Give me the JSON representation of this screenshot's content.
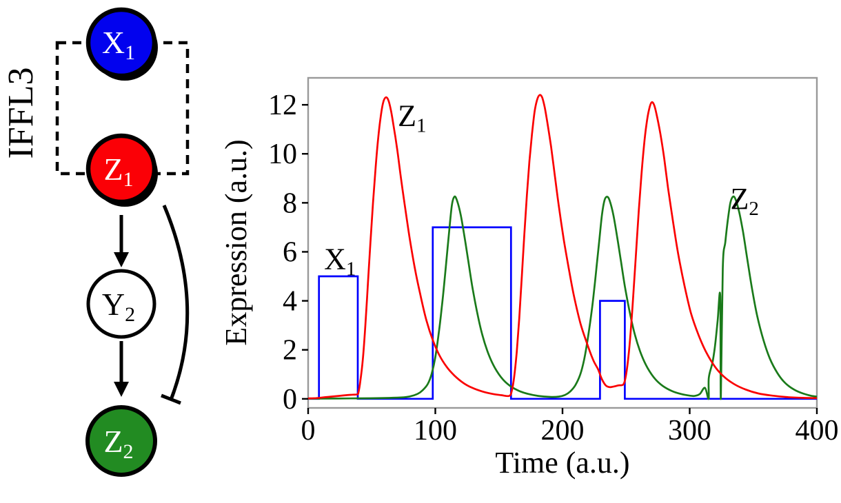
{
  "figure": {
    "background": "#ffffff"
  },
  "diagram": {
    "title": "IFFL3",
    "nodes": [
      {
        "id": "X1",
        "label_main": "X",
        "label_sub": "1",
        "fill": "#0202ee",
        "text_color": "#ffffff"
      },
      {
        "id": "Z1",
        "label_main": "Z",
        "label_sub": "1",
        "fill": "#fb0006",
        "text_color": "#ffffff"
      },
      {
        "id": "Y2",
        "label_main": "Y",
        "label_sub": "2",
        "fill": "#ffffff",
        "text_color": "#000000"
      },
      {
        "id": "Z2",
        "label_main": "Z",
        "label_sub": "2",
        "fill": "#228b22",
        "text_color": "#ffffff"
      }
    ],
    "edges": [
      {
        "from": "X1",
        "to": "Z1",
        "type": "dashed-association"
      },
      {
        "from": "Z1",
        "to": "Y2",
        "type": "activation-arrow"
      },
      {
        "from": "Y2",
        "to": "Z2",
        "type": "activation-arrow"
      },
      {
        "from": "Z1",
        "to": "Z2",
        "type": "inhibition-bar"
      }
    ]
  },
  "chart_data": {
    "type": "line",
    "title": "",
    "xlabel": "Time (a.u.)",
    "ylabel": "Expression  (a.u.)",
    "xlim": [
      0,
      400
    ],
    "ylim": [
      -0.37,
      13.1
    ],
    "x_ticks": [
      0,
      100,
      200,
      300,
      400
    ],
    "y_ticks": [
      0,
      2,
      4,
      6,
      8,
      10,
      12
    ],
    "grid": false,
    "legend_position": "none",
    "frame_color": "#999999",
    "series": [
      {
        "name": "X1",
        "color": "#0000ff",
        "style": "step",
        "points": [
          [
            0,
            0
          ],
          [
            8.5,
            0
          ],
          [
            8.5,
            5
          ],
          [
            39,
            5
          ],
          [
            39,
            0
          ],
          [
            98,
            0
          ],
          [
            98,
            7
          ],
          [
            159.5,
            7
          ],
          [
            159.5,
            0
          ],
          [
            229.5,
            0
          ],
          [
            229.5,
            4
          ],
          [
            249,
            4
          ],
          [
            249,
            0
          ],
          [
            400,
            0
          ]
        ]
      },
      {
        "name": "Z2",
        "color": "#1a7a1a",
        "style": "smooth",
        "points": [
          [
            0,
            0.01
          ],
          [
            40,
            0.02
          ],
          [
            70,
            0.05
          ],
          [
            80,
            0.1
          ],
          [
            86,
            0.2
          ],
          [
            90,
            0.35
          ],
          [
            94,
            0.6
          ],
          [
            97,
            1.0
          ],
          [
            100,
            1.7
          ],
          [
            103,
            2.8
          ],
          [
            105,
            3.7
          ],
          [
            107,
            4.7
          ],
          [
            109,
            5.8
          ],
          [
            111,
            6.9
          ],
          [
            113,
            7.9
          ],
          [
            115,
            8.25
          ],
          [
            117,
            8.1
          ],
          [
            120,
            7.5
          ],
          [
            123,
            6.6
          ],
          [
            126,
            5.6
          ],
          [
            129,
            4.6
          ],
          [
            133,
            3.5
          ],
          [
            137,
            2.6
          ],
          [
            142,
            1.8
          ],
          [
            147,
            1.25
          ],
          [
            153,
            0.8
          ],
          [
            159,
            0.52
          ],
          [
            166,
            0.32
          ],
          [
            173,
            0.2
          ],
          [
            181,
            0.12
          ],
          [
            190,
            0.08
          ],
          [
            197,
            0.09
          ],
          [
            202,
            0.16
          ],
          [
            206,
            0.3
          ],
          [
            210,
            0.55
          ],
          [
            214,
            1.0
          ],
          [
            217,
            1.6
          ],
          [
            220,
            2.5
          ],
          [
            223,
            3.6
          ],
          [
            225,
            4.5
          ],
          [
            227,
            5.5
          ],
          [
            229,
            6.5
          ],
          [
            231,
            7.5
          ],
          [
            233,
            8.1
          ],
          [
            235,
            8.25
          ],
          [
            237,
            8.1
          ],
          [
            240,
            7.5
          ],
          [
            243,
            6.6
          ],
          [
            246,
            5.6
          ],
          [
            249,
            4.6
          ],
          [
            253,
            3.5
          ],
          [
            257,
            2.6
          ],
          [
            262,
            1.8
          ],
          [
            267,
            1.25
          ],
          [
            273,
            0.8
          ],
          [
            279,
            0.52
          ],
          [
            286,
            0.32
          ],
          [
            293,
            0.2
          ],
          [
            300,
            0.13
          ],
          [
            304,
            0.12
          ],
          [
            308,
            0.2
          ],
          [
            312,
            0.45
          ],
          [
            315,
            0.85
          ],
          [
            318,
            1.5
          ],
          [
            320,
            2.2
          ],
          [
            322,
            3.2
          ],
          [
            314.9,
            0.0
          ],
          [
            324,
            4.2
          ],
          [
            326,
            5.3
          ],
          [
            328,
            6.4
          ],
          [
            330,
            7.3
          ],
          [
            332,
            8.0
          ],
          [
            324.5,
            0.0
          ],
          [
            334,
            8.25
          ],
          [
            336,
            8.15
          ],
          [
            339,
            7.6
          ],
          [
            342,
            6.8
          ],
          [
            345,
            5.8
          ],
          [
            349,
            4.5
          ],
          [
            353,
            3.4
          ],
          [
            358,
            2.4
          ],
          [
            363,
            1.65
          ],
          [
            369,
            1.05
          ],
          [
            375,
            0.65
          ],
          [
            382,
            0.38
          ],
          [
            389,
            0.22
          ],
          [
            396,
            0.12
          ],
          [
            400,
            0.09
          ]
        ]
      },
      {
        "name": "Z1",
        "color": "#fa0000",
        "style": "smooth",
        "points": [
          [
            0,
            0.02
          ],
          [
            6,
            0.03
          ],
          [
            12,
            0.06
          ],
          [
            18,
            0.09
          ],
          [
            24,
            0.12
          ],
          [
            30,
            0.15
          ],
          [
            35,
            0.17
          ],
          [
            38.5,
            0.18
          ],
          [
            39.5,
            0.25
          ],
          [
            41,
            0.7
          ],
          [
            43,
            1.6
          ],
          [
            45,
            3.0
          ],
          [
            47,
            4.7
          ],
          [
            49,
            6.4
          ],
          [
            51,
            8.0
          ],
          [
            53,
            9.4
          ],
          [
            55,
            10.6
          ],
          [
            57,
            11.5
          ],
          [
            59,
            12.1
          ],
          [
            61,
            12.3
          ],
          [
            63,
            12.2
          ],
          [
            65,
            11.8
          ],
          [
            67,
            11.2
          ],
          [
            70,
            10.2
          ],
          [
            73,
            9.0
          ],
          [
            76,
            7.9
          ],
          [
            80,
            6.5
          ],
          [
            84,
            5.3
          ],
          [
            88,
            4.3
          ],
          [
            93,
            3.2
          ],
          [
            98,
            2.4
          ],
          [
            103,
            1.8
          ],
          [
            109,
            1.3
          ],
          [
            115,
            0.95
          ],
          [
            122,
            0.65
          ],
          [
            129,
            0.45
          ],
          [
            137,
            0.3
          ],
          [
            145,
            0.2
          ],
          [
            152,
            0.15
          ],
          [
            158,
            0.12
          ],
          [
            160,
            0.3
          ],
          [
            162,
            0.9
          ],
          [
            164,
            1.9
          ],
          [
            166,
            3.3
          ],
          [
            168,
            5.0
          ],
          [
            170,
            6.7
          ],
          [
            172,
            8.3
          ],
          [
            174,
            9.7
          ],
          [
            176,
            10.8
          ],
          [
            178,
            11.7
          ],
          [
            180,
            12.2
          ],
          [
            182,
            12.4
          ],
          [
            184,
            12.3
          ],
          [
            186,
            11.9
          ],
          [
            188,
            11.3
          ],
          [
            191,
            10.3
          ],
          [
            194,
            9.1
          ],
          [
            197,
            7.9
          ],
          [
            201,
            6.5
          ],
          [
            205,
            5.3
          ],
          [
            209,
            4.2
          ],
          [
            214,
            3.1
          ],
          [
            219,
            2.3
          ],
          [
            224,
            1.6
          ],
          [
            228,
            1.2
          ],
          [
            231,
            0.8
          ],
          [
            234,
            0.55
          ],
          [
            237,
            0.48
          ],
          [
            240,
            0.5
          ],
          [
            244,
            0.55
          ],
          [
            248,
            0.6
          ],
          [
            250,
            1.0
          ],
          [
            252,
            1.8
          ],
          [
            254,
            3.0
          ],
          [
            256,
            4.5
          ],
          [
            258,
            6.1
          ],
          [
            260,
            7.7
          ],
          [
            262,
            9.1
          ],
          [
            264,
            10.3
          ],
          [
            266,
            11.2
          ],
          [
            268,
            11.8
          ],
          [
            270,
            12.1
          ],
          [
            272,
            12.0
          ],
          [
            274,
            11.6
          ],
          [
            277,
            10.8
          ],
          [
            280,
            9.8
          ],
          [
            283,
            8.6
          ],
          [
            287,
            7.2
          ],
          [
            291,
            5.9
          ],
          [
            296,
            4.6
          ],
          [
            301,
            3.5
          ],
          [
            307,
            2.6
          ],
          [
            313,
            1.9
          ],
          [
            320,
            1.3
          ],
          [
            327,
            0.9
          ],
          [
            335,
            0.6
          ],
          [
            344,
            0.38
          ],
          [
            354,
            0.22
          ],
          [
            365,
            0.13
          ],
          [
            377,
            0.07
          ],
          [
            389,
            0.04
          ],
          [
            400,
            0.03
          ]
        ]
      }
    ],
    "annotations": [
      {
        "id": "x1-curve-label",
        "text_main": "X",
        "text_sub": "1",
        "x": 12.5,
        "y": 5.3
      },
      {
        "id": "z1-curve-label",
        "text_main": "Z",
        "text_sub": "1",
        "x": 70.5,
        "y": 11.15
      },
      {
        "id": "z2-curve-label",
        "text_main": "Z",
        "text_sub": "2",
        "x": 332,
        "y": 7.75
      }
    ]
  }
}
